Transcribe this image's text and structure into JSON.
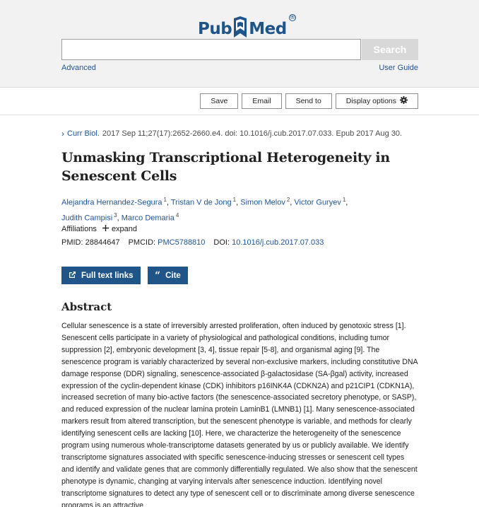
{
  "header": {
    "logo_pub": "Pub",
    "logo_med": "Med",
    "logo_reg": "®",
    "search_value": "",
    "search_button": "Search",
    "advanced_link": "Advanced",
    "user_guide_link": "User Guide"
  },
  "toolbar": {
    "save": "Save",
    "email": "Email",
    "send_to": "Send to",
    "display_options": "Display options"
  },
  "citation": {
    "journal": "Curr Biol.",
    "details": "2017 Sep 11;27(17):2652-2660.e4. doi: 10.1016/j.cub.2017.07.033. Epub 2017 Aug 30."
  },
  "article": {
    "title": "Unmasking Transcriptional Heterogeneity in Senescent Cells",
    "authors": [
      {
        "name": "Alejandra Hernandez-Segura",
        "aff": "1"
      },
      {
        "name": "Tristan V de Jong",
        "aff": "1"
      },
      {
        "name": "Simon Melov",
        "aff": "2"
      },
      {
        "name": "Victor Guryev",
        "aff": "1"
      },
      {
        "name": "Judith Campisi",
        "aff": "3"
      },
      {
        "name": "Marco Demaria",
        "aff": "4"
      }
    ],
    "affiliations_label": "Affiliations",
    "expand_label": "expand",
    "pmid_label": "PMID:",
    "pmid": "28844647",
    "pmcid_label": "PMCID:",
    "pmcid": "PMC5788810",
    "doi_label": "DOI:",
    "doi": "10.1016/j.cub.2017.07.033"
  },
  "actions": {
    "full_text": "Full text links",
    "cite": "Cite"
  },
  "abstract": {
    "heading": "Abstract",
    "text": "Cellular senescence is a state of irreversibly arrested proliferation, often induced by genotoxic stress [1]. Senescent cells participate in a variety of physiological and pathological conditions, including tumor suppression [2], embryonic development [3, 4], tissue repair [5-8], and organismal aging [9]. The senescence program is variably characterized by several non-exclusive markers, including constitutive DNA damage response (DDR) signaling, senescence-associated β-galactosidase (SA-βgal) activity, increased expression of the cyclin-dependent kinase (CDK) inhibitors p16INK4A (CDKN2A) and p21CIP1 (CDKN1A), increased secretion of many bio-active factors (the senescence-associated secretory phenotype, or SASP), and reduced expression of the nuclear lamina protein LaminB1 (LMNB1) [1]. Many senescence-associated markers result from altered transcription, but the senescent phenotype is variable, and methods for clearly identifying senescent cells are lacking [10]. Here, we characterize the heterogeneity of the senescence program using numerous whole-transcriptome datasets generated by us or publicly available. We identify transcriptome signatures associated with specific senescence-inducing stresses or senescent cell types and identify and validate genes that are commonly differentially regulated. We also show that the senescent phenotype is dynamic, changing at varying intervals after senescence induction. Identifying novel transcriptome signatures to detect any type of senescent cell or to discriminate among diverse senescence programs is an attractive"
  },
  "colors": {
    "brand": "#20558a",
    "link": "#205493",
    "header_bg": "#f2f2f2"
  }
}
